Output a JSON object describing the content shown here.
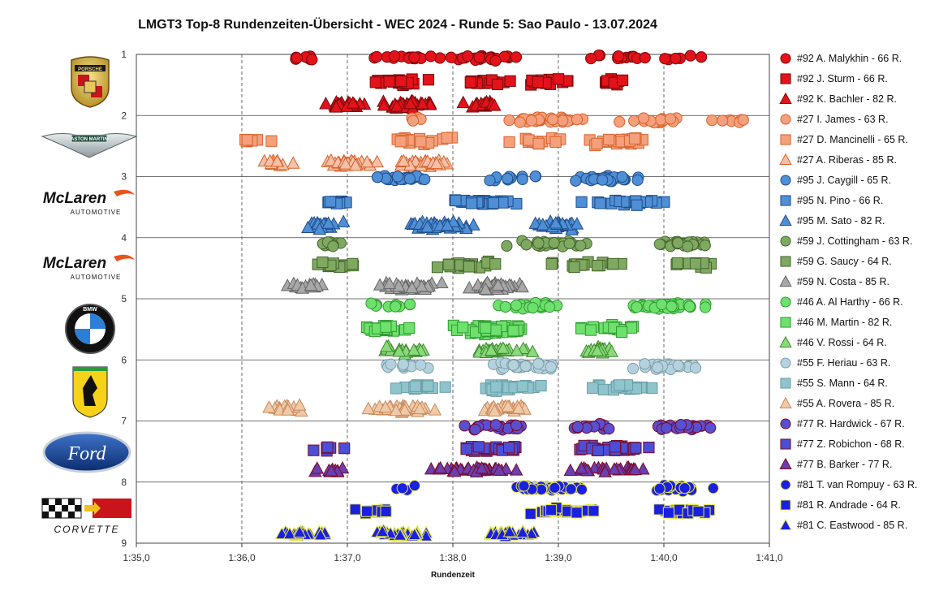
{
  "title": "LMGT3 Top-8 Rundenzeiten-Übersicht - WEC 2024 - Runde 5: Sao Paulo - 13.07.2024",
  "chart_data": {
    "type": "scatter",
    "title": "LMGT3 Top-8 Rundenzeiten-Übersicht - WEC 2024 - Runde 5: Sao Paulo - 13.07.2024",
    "xlabel": "Rundenzeit",
    "ylabel": "",
    "xlim": [
      95.0,
      101.0
    ],
    "ylim": [
      1,
      9
    ],
    "y_reversed": true,
    "x_tick_labels": [
      "1:35,0",
      "1:36,0",
      "1:37,0",
      "1:38,0",
      "1:39,0",
      "1:40,0",
      "1:41,0"
    ],
    "y_tick_labels": [
      "1",
      "2",
      "3",
      "4",
      "5",
      "6",
      "7",
      "8",
      "9"
    ],
    "grid": "vertical dashed, horizontal solid",
    "legend_position": "right",
    "series": [
      {
        "name": "#92 A. Malykhin - 66 R.",
        "marker": "circle",
        "color": "#e3121b",
        "edge": "#7a0a0a",
        "row": 1.05,
        "spread": 0.06,
        "laps": 66,
        "xmin": 96.45,
        "xmax": 100.7,
        "clusters": [
          [
            96.6,
            0.25,
            0.1
          ],
          [
            97.6,
            0.5,
            0.25
          ],
          [
            98.3,
            0.5,
            0.3
          ],
          [
            99.5,
            0.5,
            0.2
          ],
          [
            100.2,
            0.3,
            0.15
          ]
        ]
      },
      {
        "name": "#92 J. Sturm - 66 R.",
        "marker": "square",
        "color": "#e3121b",
        "edge": "#7a0a0a",
        "row": 1.45,
        "spread": 0.06,
        "laps": 66,
        "xmin": 96.3,
        "xmax": 99.8,
        "clusters": [
          [
            97.5,
            0.35,
            0.3
          ],
          [
            98.3,
            0.35,
            0.35
          ],
          [
            98.9,
            0.35,
            0.25
          ],
          [
            99.5,
            0.2,
            0.1
          ]
        ]
      },
      {
        "name": "#92 K. Bachler - 82 R.",
        "marker": "triangle",
        "color": "#e3121b",
        "edge": "#7a0a0a",
        "row": 1.82,
        "spread": 0.08,
        "laps": 82,
        "xmin": 96.55,
        "xmax": 98.7,
        "clusters": [
          [
            97.0,
            0.3,
            0.35
          ],
          [
            97.6,
            0.3,
            0.4
          ],
          [
            98.3,
            0.25,
            0.25
          ]
        ]
      },
      {
        "name": "#27 I. James - 63 R.",
        "marker": "circle",
        "color": "#f4a07d",
        "edge": "#d8622b",
        "row": 2.08,
        "spread": 0.07,
        "laps": 63,
        "xmin": 97.4,
        "xmax": 101.0,
        "clusters": [
          [
            97.6,
            0.2,
            0.08
          ],
          [
            98.9,
            0.5,
            0.45
          ],
          [
            99.9,
            0.4,
            0.3
          ],
          [
            100.6,
            0.4,
            0.17
          ]
        ]
      },
      {
        "name": "#27 D. Mancinelli - 65 R.",
        "marker": "square",
        "color": "#f4a07d",
        "edge": "#d8622b",
        "row": 2.42,
        "spread": 0.08,
        "laps": 65,
        "xmin": 95.9,
        "xmax": 100.5,
        "clusters": [
          [
            96.1,
            0.25,
            0.1
          ],
          [
            97.7,
            0.6,
            0.3
          ],
          [
            98.7,
            0.5,
            0.35
          ],
          [
            99.6,
            0.5,
            0.25
          ]
        ]
      },
      {
        "name": "#27 A. Riberas - 85 R.",
        "marker": "triangle",
        "color": "#f4c1a8",
        "edge": "#d8622b",
        "row": 2.78,
        "spread": 0.08,
        "laps": 85,
        "xmin": 96.0,
        "xmax": 98.4,
        "clusters": [
          [
            96.3,
            0.25,
            0.3
          ],
          [
            97.0,
            0.35,
            0.35
          ],
          [
            97.7,
            0.35,
            0.35
          ]
        ]
      },
      {
        "name": "#95 J. Caygill - 65 R.",
        "marker": "circle",
        "color": "#4f8fd6",
        "edge": "#1f4d8a",
        "row": 3.03,
        "spread": 0.07,
        "laps": 65,
        "xmin": 96.6,
        "xmax": 100.6,
        "clusters": [
          [
            97.5,
            0.35,
            0.3
          ],
          [
            98.6,
            0.4,
            0.35
          ],
          [
            99.5,
            0.4,
            0.35
          ]
        ]
      },
      {
        "name": "#95 N. Pino - 66 R.",
        "marker": "square",
        "color": "#4f8fd6",
        "edge": "#1f4d8a",
        "row": 3.42,
        "spread": 0.06,
        "laps": 66,
        "xmin": 96.6,
        "xmax": 100.9,
        "clusters": [
          [
            96.9,
            0.2,
            0.2
          ],
          [
            98.3,
            0.45,
            0.45
          ],
          [
            99.6,
            0.55,
            0.35
          ]
        ]
      },
      {
        "name": "#95 M. Sato - 82 R.",
        "marker": "triangle",
        "color": "#4f8fd6",
        "edge": "#1f4d8a",
        "row": 3.8,
        "spread": 0.09,
        "laps": 82,
        "xmin": 96.4,
        "xmax": 99.5,
        "clusters": [
          [
            96.8,
            0.3,
            0.3
          ],
          [
            97.9,
            0.4,
            0.45
          ],
          [
            99.0,
            0.3,
            0.25
          ]
        ]
      },
      {
        "name": "#59 J. Cottingham - 63 R.",
        "marker": "circle",
        "color": "#7fa961",
        "edge": "#44652d",
        "row": 4.1,
        "spread": 0.07,
        "laps": 63,
        "xmin": 96.6,
        "xmax": 101.0,
        "clusters": [
          [
            96.8,
            0.2,
            0.1
          ],
          [
            98.9,
            0.6,
            0.5
          ],
          [
            100.2,
            0.5,
            0.4
          ]
        ]
      },
      {
        "name": "#59 G. Saucy - 64 R.",
        "marker": "square",
        "color": "#7fa961",
        "edge": "#44652d",
        "row": 4.45,
        "spread": 0.08,
        "laps": 64,
        "xmin": 96.5,
        "xmax": 101.0,
        "clusters": [
          [
            96.9,
            0.3,
            0.2
          ],
          [
            98.1,
            0.4,
            0.35
          ],
          [
            99.2,
            0.5,
            0.3
          ],
          [
            100.3,
            0.35,
            0.15
          ]
        ]
      },
      {
        "name": "#59 N. Costa - 85 R.",
        "marker": "triangle",
        "color": "#a8a8a8",
        "edge": "#666666",
        "row": 4.8,
        "spread": 0.09,
        "laps": 85,
        "xmin": 96.3,
        "xmax": 99.0,
        "clusters": [
          [
            96.6,
            0.25,
            0.15
          ],
          [
            97.6,
            0.4,
            0.45
          ],
          [
            98.4,
            0.35,
            0.4
          ]
        ]
      },
      {
        "name": "#46 A. Al Harthy - 66 R.",
        "marker": "circle",
        "color": "#6ee06e",
        "edge": "#2f9a2f",
        "row": 5.12,
        "spread": 0.07,
        "laps": 66,
        "xmin": 97.0,
        "xmax": 100.9,
        "clusters": [
          [
            97.4,
            0.3,
            0.15
          ],
          [
            98.8,
            0.5,
            0.35
          ],
          [
            100.0,
            0.5,
            0.5
          ]
        ]
      },
      {
        "name": "#46 M. Martin - 82 R.",
        "marker": "square",
        "color": "#6ee06e",
        "edge": "#2f9a2f",
        "row": 5.5,
        "spread": 0.1,
        "laps": 82,
        "xmin": 96.9,
        "xmax": 100.7,
        "clusters": [
          [
            97.4,
            0.35,
            0.25
          ],
          [
            98.4,
            0.45,
            0.5
          ],
          [
            99.5,
            0.4,
            0.25
          ]
        ]
      },
      {
        "name": "#46 V. Rossi - 64 R.",
        "marker": "triangle",
        "color": "#8ad97a",
        "edge": "#3f8a2f",
        "row": 5.85,
        "spread": 0.08,
        "laps": 64,
        "xmin": 96.9,
        "xmax": 100.0,
        "clusters": [
          [
            97.5,
            0.3,
            0.3
          ],
          [
            98.4,
            0.4,
            0.45
          ],
          [
            99.4,
            0.3,
            0.25
          ]
        ]
      },
      {
        "name": "#55 F. Heriau - 63 R.",
        "marker": "circle",
        "color": "#b4d2de",
        "edge": "#7f9eaa",
        "row": 6.1,
        "spread": 0.08,
        "laps": 63,
        "xmin": 97.0,
        "xmax": 101.0,
        "clusters": [
          [
            97.5,
            0.35,
            0.25
          ],
          [
            98.7,
            0.5,
            0.4
          ],
          [
            100.0,
            0.5,
            0.35
          ]
        ]
      },
      {
        "name": "#55 S. Mann - 64 R.",
        "marker": "square",
        "color": "#8fc4cc",
        "edge": "#6a9ea6",
        "row": 6.45,
        "spread": 0.08,
        "laps": 64,
        "xmin": 97.3,
        "xmax": 100.3,
        "clusters": [
          [
            97.7,
            0.3,
            0.25
          ],
          [
            98.5,
            0.45,
            0.45
          ],
          [
            99.6,
            0.35,
            0.3
          ]
        ]
      },
      {
        "name": "#55 A. Rovera - 85 R.",
        "marker": "triangle",
        "color": "#f0c9a8",
        "edge": "#c98a5a",
        "row": 6.8,
        "spread": 0.08,
        "laps": 85,
        "xmin": 95.9,
        "xmax": 99.3,
        "clusters": [
          [
            96.4,
            0.3,
            0.15
          ],
          [
            97.5,
            0.4,
            0.45
          ],
          [
            98.5,
            0.35,
            0.4
          ]
        ]
      },
      {
        "name": "#77 R. Hardwick - 67 R.",
        "marker": "circle",
        "color": "#5a4fd0",
        "edge": "#7a0a2a",
        "row": 7.1,
        "spread": 0.07,
        "laps": 67,
        "xmin": 97.5,
        "xmax": 100.9,
        "clusters": [
          [
            98.4,
            0.4,
            0.3
          ],
          [
            99.3,
            0.4,
            0.35
          ],
          [
            100.2,
            0.4,
            0.35
          ]
        ]
      },
      {
        "name": "#77 Z. Robichon - 68 R.",
        "marker": "square",
        "color": "#4b4fd6",
        "edge": "#7a0a2a",
        "row": 7.45,
        "spread": 0.07,
        "laps": 68,
        "xmin": 96.5,
        "xmax": 100.3,
        "clusters": [
          [
            96.8,
            0.3,
            0.1
          ],
          [
            98.4,
            0.5,
            0.5
          ],
          [
            99.5,
            0.45,
            0.4
          ]
        ]
      },
      {
        "name": "#77 B. Barker - 77 R.",
        "marker": "triangle",
        "color": "#6a3fb0",
        "edge": "#7a0a2a",
        "row": 7.8,
        "spread": 0.06,
        "laps": 77,
        "xmin": 96.35,
        "xmax": 100.55,
        "clusters": [
          [
            96.9,
            0.3,
            0.15
          ],
          [
            98.2,
            0.5,
            0.45
          ],
          [
            99.5,
            0.5,
            0.4
          ]
        ]
      },
      {
        "name": "#81 T. van Rompuy - 63 R.",
        "marker": "circle",
        "color": "#1a20e0",
        "edge": "#e8e84a",
        "row": 8.1,
        "spread": 0.07,
        "laps": 63,
        "xmin": 97.3,
        "xmax": 100.8,
        "clusters": [
          [
            97.5,
            0.2,
            0.05
          ],
          [
            98.9,
            0.45,
            0.5
          ],
          [
            100.1,
            0.4,
            0.45
          ]
        ]
      },
      {
        "name": "#81 R. Andrade - 64 R.",
        "marker": "square",
        "color": "#1a20e0",
        "edge": "#e8e84a",
        "row": 8.48,
        "spread": 0.07,
        "laps": 64,
        "xmin": 97.0,
        "xmax": 100.8,
        "clusters": [
          [
            97.3,
            0.3,
            0.15
          ],
          [
            99.0,
            0.45,
            0.5
          ],
          [
            100.2,
            0.35,
            0.35
          ]
        ]
      },
      {
        "name": "#81 C. Eastwood - 85 R.",
        "marker": "triangle",
        "color": "#1a20e0",
        "edge": "#e8e84a",
        "row": 8.85,
        "spread": 0.07,
        "laps": 85,
        "xmin": 96.1,
        "xmax": 99.4,
        "clusters": [
          [
            96.6,
            0.35,
            0.3
          ],
          [
            97.5,
            0.4,
            0.4
          ],
          [
            98.5,
            0.4,
            0.3
          ]
        ]
      }
    ],
    "brands": [
      {
        "name": "Porsche",
        "rows": [
          1,
          2
        ]
      },
      {
        "name": "Aston Martin",
        "rows": [
          2,
          3
        ]
      },
      {
        "name": "McLaren",
        "rows": [
          3,
          4
        ]
      },
      {
        "name": "McLaren",
        "rows": [
          4,
          5
        ]
      },
      {
        "name": "BMW",
        "rows": [
          5,
          6
        ]
      },
      {
        "name": "Ferrari",
        "rows": [
          6,
          7
        ]
      },
      {
        "name": "Ford",
        "rows": [
          7,
          8
        ]
      },
      {
        "name": "Corvette",
        "rows": [
          8,
          9
        ]
      }
    ]
  },
  "logos": {
    "porsche_text": "PORSCHE",
    "aston_text": "ASTON MARTIN",
    "mclaren_text": "McLaren",
    "mclaren_sub": "AUTOMOTIVE",
    "bmw_text": "BMW",
    "ford_text": "Ford",
    "corvette_text": "CORVETTE"
  }
}
